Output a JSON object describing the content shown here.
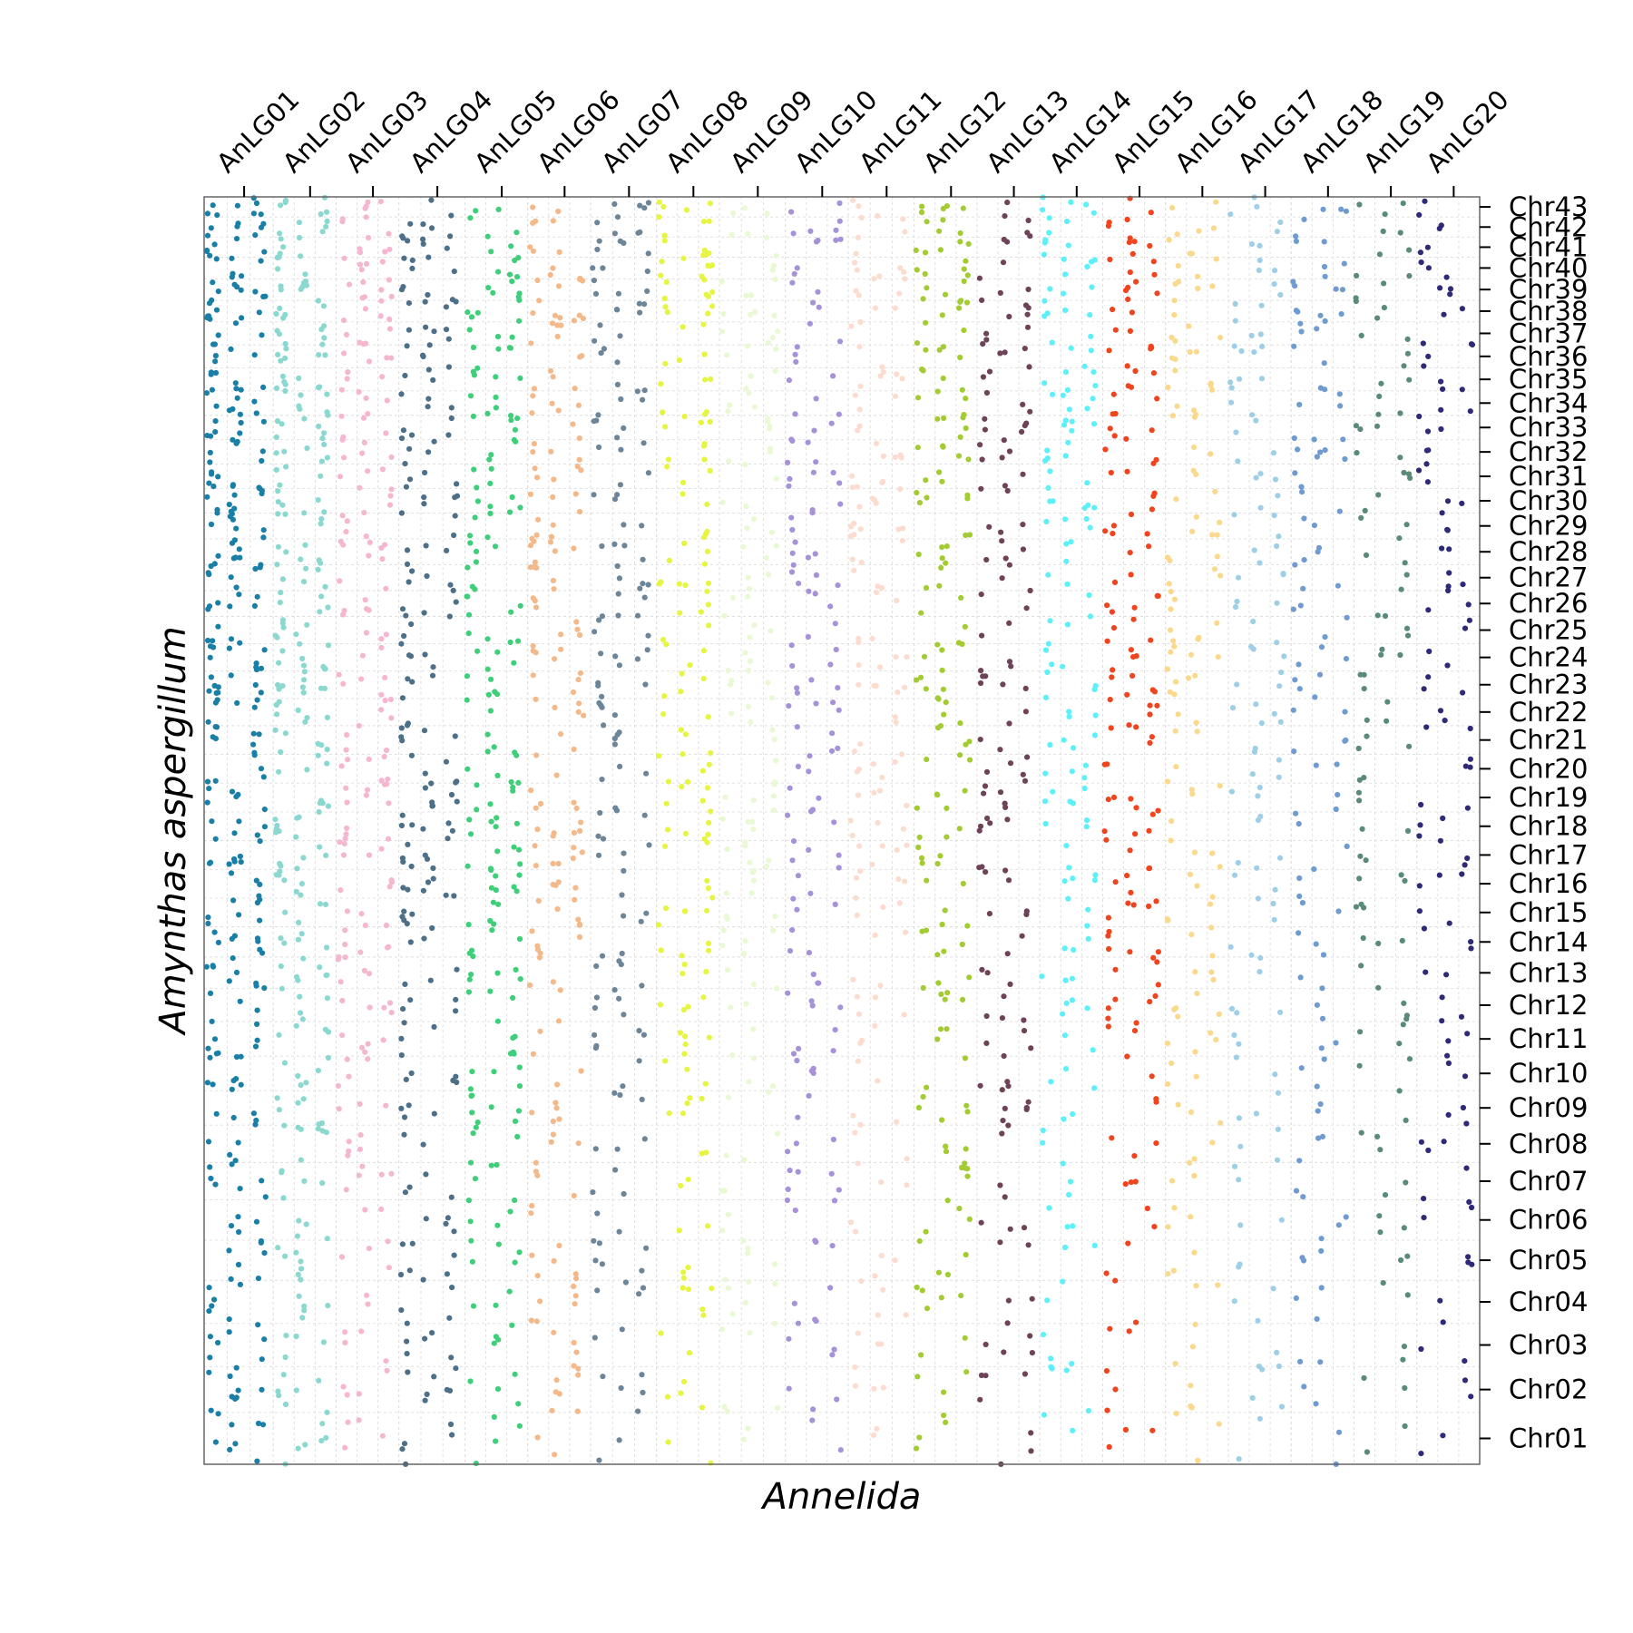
{
  "chart_data": {
    "type": "scatter",
    "title": "",
    "xlabel": "Annelida",
    "ylabel": "Amynthas aspergillum",
    "grid": true,
    "x_groups": [
      "AnLG01",
      "AnLG02",
      "AnLG03",
      "AnLG04",
      "AnLG05",
      "AnLG06",
      "AnLG07",
      "AnLG08",
      "AnLG09",
      "AnLG10",
      "AnLG11",
      "AnLG12",
      "AnLG13",
      "AnLG14",
      "AnLG15",
      "AnLG16",
      "AnLG17",
      "AnLG18",
      "AnLG19",
      "AnLG20"
    ],
    "y_chromosomes": [
      "Chr01",
      "Chr02",
      "Chr03",
      "Chr04",
      "Chr05",
      "Chr06",
      "Chr07",
      "Chr08",
      "Chr09",
      "Chr10",
      "Chr11",
      "Chr12",
      "Chr13",
      "Chr14",
      "Chr15",
      "Chr16",
      "Chr17",
      "Chr18",
      "Chr19",
      "Chr20",
      "Chr21",
      "Chr22",
      "Chr23",
      "Chr24",
      "Chr25",
      "Chr26",
      "Chr27",
      "Chr28",
      "Chr29",
      "Chr30",
      "Chr31",
      "Chr32",
      "Chr33",
      "Chr34",
      "Chr35",
      "Chr36",
      "Chr37",
      "Chr38",
      "Chr39",
      "Chr40",
      "Chr41",
      "Chr42",
      "Chr43"
    ],
    "group_colors": [
      "#1a7fa6",
      "#8ad8cf",
      "#f5b7cf",
      "#4d6f87",
      "#3fcf7a",
      "#f4b98a",
      "#6d8598",
      "#e6f542",
      "#e8f9d4",
      "#a592d8",
      "#fddcd0",
      "#a3cc33",
      "#6e4358",
      "#5ef0f8",
      "#f0441e",
      "#fbd98c",
      "#9fcfe6",
      "#6f9bd0",
      "#5a8a78",
      "#2e2a78"
    ],
    "point_density": [
      [
        4,
        4,
        3,
        3,
        3,
        2,
        3,
        2,
        2,
        4,
        3,
        2,
        4,
        4,
        3,
        2,
        4,
        3,
        3,
        2,
        4,
        3,
        4,
        4,
        2,
        3,
        4,
        4,
        3,
        4,
        4,
        3,
        3,
        4,
        4,
        2,
        2,
        4,
        4,
        3,
        3,
        3,
        4
      ],
      [
        3,
        3,
        2,
        2,
        3,
        2,
        2,
        3,
        3,
        3,
        2,
        2,
        3,
        2,
        2,
        3,
        3,
        4,
        2,
        2,
        3,
        3,
        4,
        4,
        3,
        2,
        2,
        3,
        2,
        3,
        2,
        3,
        3,
        3,
        3,
        3,
        3,
        3,
        3,
        2,
        2,
        2,
        3
      ],
      [
        2,
        2,
        2,
        1,
        2,
        1,
        2,
        2,
        1,
        2,
        2,
        2,
        2,
        3,
        2,
        2,
        2,
        2,
        3,
        3,
        2,
        2,
        2,
        1,
        1,
        2,
        1,
        3,
        2,
        2,
        2,
        2,
        2,
        2,
        2,
        2,
        2,
        2,
        3,
        2,
        2,
        2,
        2
      ],
      [
        2,
        3,
        2,
        2,
        3,
        2,
        2,
        1,
        2,
        2,
        2,
        2,
        1,
        1,
        2,
        3,
        3,
        3,
        3,
        2,
        2,
        1,
        2,
        2,
        1,
        2,
        2,
        2,
        1,
        2,
        2,
        2,
        2,
        2,
        1,
        2,
        2,
        2,
        2,
        2,
        2,
        2,
        1
      ],
      [
        2,
        2,
        2,
        1,
        2,
        2,
        2,
        1,
        3,
        2,
        2,
        2,
        2,
        2,
        2,
        3,
        3,
        3,
        2,
        2,
        2,
        1,
        2,
        2,
        2,
        2,
        1,
        2,
        2,
        2,
        2,
        2,
        2,
        2,
        2,
        2,
        1,
        2,
        3,
        2,
        1,
        1,
        1
      ],
      [
        1,
        3,
        2,
        3,
        3,
        1,
        2,
        1,
        2,
        1,
        1,
        1,
        1,
        2,
        3,
        2,
        3,
        3,
        2,
        1,
        1,
        2,
        2,
        2,
        2,
        1,
        2,
        3,
        2,
        2,
        2,
        2,
        1,
        2,
        2,
        1,
        2,
        3,
        2,
        1,
        1,
        1,
        1
      ],
      [
        1,
        2,
        1,
        2,
        3,
        1,
        1,
        1,
        1,
        1,
        2,
        2,
        2,
        1,
        1,
        1,
        1,
        2,
        1,
        1,
        2,
        2,
        2,
        2,
        1,
        2,
        2,
        2,
        1,
        1,
        1,
        1,
        2,
        2,
        1,
        1,
        1,
        2,
        2,
        1,
        2,
        2,
        2
      ],
      [
        1,
        2,
        1,
        2,
        1,
        1,
        1,
        1,
        2,
        1,
        2,
        2,
        1,
        2,
        2,
        1,
        1,
        2,
        2,
        2,
        2,
        1,
        2,
        1,
        1,
        2,
        2,
        2,
        1,
        1,
        1,
        2,
        2,
        1,
        1,
        1,
        1,
        2,
        3,
        3,
        2,
        1,
        2
      ],
      [
        1,
        1,
        1,
        2,
        2,
        1,
        1,
        1,
        1,
        1,
        1,
        1,
        1,
        2,
        1,
        2,
        3,
        2,
        2,
        1,
        1,
        1,
        2,
        2,
        1,
        1,
        1,
        1,
        1,
        1,
        1,
        1,
        2,
        2,
        1,
        1,
        2,
        2,
        2,
        1,
        1,
        1,
        1
      ],
      [
        1,
        1,
        1,
        2,
        1,
        1,
        2,
        1,
        1,
        2,
        2,
        2,
        1,
        1,
        1,
        1,
        2,
        1,
        2,
        1,
        2,
        2,
        2,
        2,
        1,
        1,
        2,
        2,
        1,
        1,
        2,
        2,
        1,
        1,
        1,
        1,
        1,
        1,
        1,
        1,
        2,
        2,
        1
      ],
      [
        1,
        2,
        1,
        2,
        1,
        1,
        1,
        1,
        1,
        1,
        1,
        2,
        1,
        1,
        1,
        2,
        2,
        2,
        2,
        2,
        1,
        1,
        2,
        2,
        1,
        1,
        1,
        1,
        3,
        2,
        2,
        2,
        1,
        1,
        2,
        1,
        1,
        1,
        2,
        2,
        1,
        1,
        1
      ],
      [
        2,
        1,
        1,
        2,
        2,
        2,
        2,
        1,
        2,
        1,
        1,
        2,
        1,
        2,
        1,
        1,
        2,
        1,
        2,
        1,
        2,
        2,
        2,
        2,
        1,
        1,
        1,
        2,
        1,
        2,
        1,
        2,
        2,
        2,
        2,
        2,
        1,
        2,
        2,
        2,
        2,
        2,
        2
      ],
      [
        1,
        2,
        2,
        1,
        1,
        1,
        1,
        1,
        2,
        2,
        2,
        2,
        1,
        1,
        1,
        1,
        1,
        2,
        2,
        2,
        1,
        1,
        2,
        1,
        1,
        1,
        1,
        2,
        1,
        1,
        1,
        2,
        2,
        1,
        1,
        2,
        2,
        2,
        1,
        1,
        1,
        1,
        1
      ],
      [
        1,
        2,
        1,
        1,
        1,
        1,
        1,
        1,
        1,
        1,
        1,
        2,
        1,
        1,
        1,
        2,
        1,
        1,
        2,
        2,
        2,
        1,
        2,
        2,
        1,
        1,
        1,
        1,
        2,
        2,
        1,
        2,
        2,
        2,
        2,
        1,
        1,
        2,
        1,
        2,
        2,
        1,
        2
      ],
      [
        1,
        1,
        1,
        1,
        1,
        1,
        1,
        1,
        1,
        1,
        1,
        2,
        2,
        2,
        2,
        1,
        1,
        2,
        2,
        1,
        2,
        2,
        2,
        2,
        2,
        2,
        1,
        1,
        2,
        1,
        1,
        1,
        2,
        2,
        2,
        2,
        1,
        1,
        2,
        2,
        2,
        1,
        1
      ],
      [
        1,
        1,
        1,
        1,
        1,
        1,
        1,
        1,
        1,
        1,
        2,
        2,
        1,
        1,
        1,
        1,
        1,
        1,
        1,
        1,
        1,
        1,
        2,
        2,
        2,
        1,
        1,
        1,
        2,
        1,
        1,
        1,
        1,
        1,
        2,
        2,
        2,
        1,
        2,
        1,
        1,
        1,
        1
      ],
      [
        1,
        1,
        1,
        1,
        1,
        1,
        1,
        1,
        1,
        1,
        1,
        1,
        1,
        1,
        1,
        1,
        1,
        1,
        1,
        1,
        1,
        2,
        1,
        1,
        1,
        1,
        1,
        1,
        1,
        1,
        1,
        1,
        1,
        1,
        2,
        2,
        1,
        1,
        1,
        1,
        1,
        1,
        1
      ],
      [
        1,
        1,
        1,
        1,
        1,
        1,
        1,
        1,
        1,
        1,
        1,
        1,
        1,
        1,
        1,
        1,
        1,
        1,
        1,
        1,
        1,
        1,
        2,
        1,
        1,
        1,
        1,
        1,
        1,
        1,
        1,
        2,
        1,
        1,
        1,
        1,
        1,
        2,
        2,
        1,
        1,
        1,
        1
      ],
      [
        1,
        1,
        1,
        1,
        1,
        1,
        1,
        1,
        1,
        1,
        1,
        1,
        1,
        1,
        1,
        1,
        1,
        1,
        1,
        1,
        1,
        1,
        1,
        1,
        1,
        1,
        1,
        1,
        1,
        1,
        1,
        1,
        1,
        1,
        1,
        1,
        1,
        1,
        1,
        1,
        1,
        1,
        1
      ],
      [
        1,
        1,
        1,
        1,
        1,
        1,
        1,
        1,
        1,
        1,
        1,
        1,
        1,
        1,
        1,
        1,
        1,
        1,
        1,
        1,
        1,
        1,
        1,
        1,
        1,
        1,
        1,
        1,
        1,
        1,
        1,
        1,
        1,
        1,
        1,
        1,
        1,
        1,
        1,
        1,
        1,
        1,
        1
      ]
    ]
  }
}
